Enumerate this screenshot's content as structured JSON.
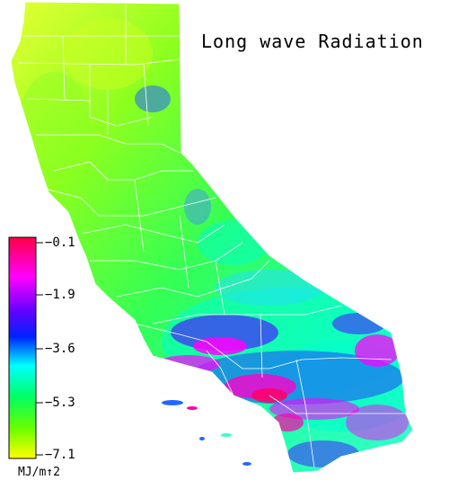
{
  "title": "Long wave Radiation",
  "legend": {
    "unit": "MJ/m↑2",
    "ticks": [
      "−0.1",
      "−1.9",
      "−3.6",
      "−5.3",
      "−7.1"
    ],
    "colors": [
      "#ff004a",
      "#ff00ff",
      "#5a00ff",
      "#0010ff",
      "#00ffff",
      "#00ff66",
      "#66ff00",
      "#ffff00"
    ]
  },
  "colors": {
    "state_outline": "#ffffff",
    "low_value": "#ccff33",
    "mid_value": "#33ff66",
    "high_value": "#ff00ff"
  }
}
